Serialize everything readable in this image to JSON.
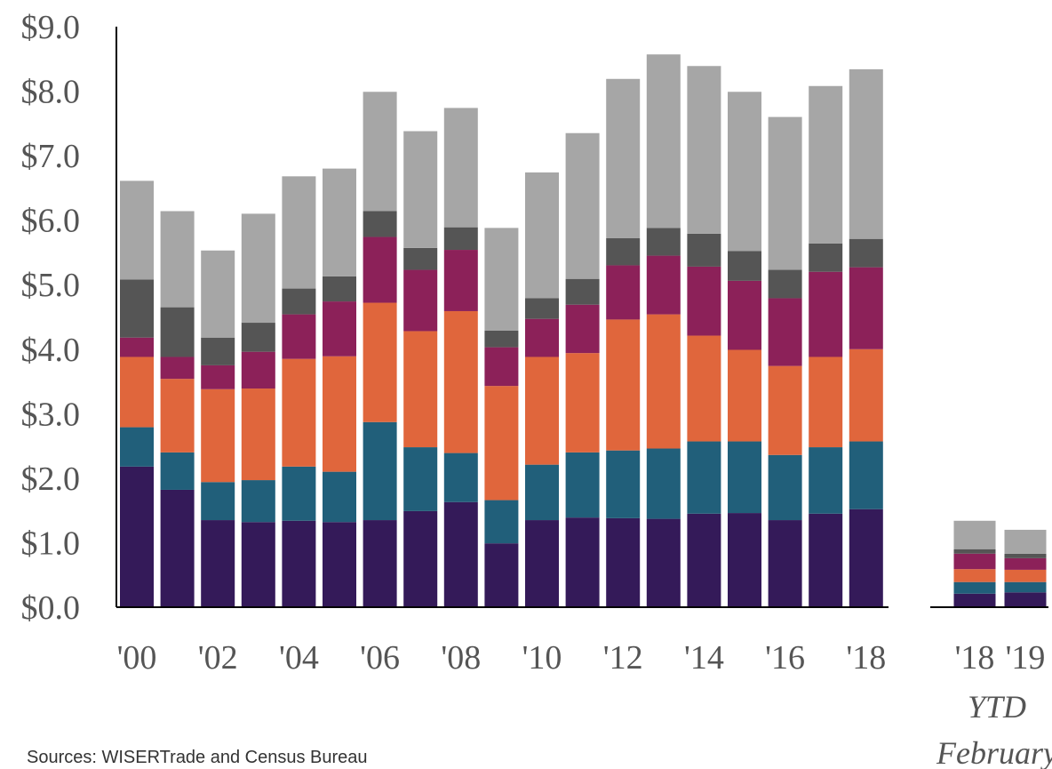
{
  "chart_data": [
    {
      "type": "bar",
      "stacked": true,
      "categories": [
        "'00",
        null,
        "'02",
        null,
        "'04",
        null,
        "'06",
        null,
        "'08",
        null,
        "'10",
        null,
        "'12",
        null,
        "'14",
        null,
        "'16",
        null,
        "'18"
      ],
      "series": [
        {
          "color": "#341a59",
          "values": [
            2.18,
            1.82,
            1.35,
            1.32,
            1.34,
            1.32,
            1.35,
            1.49,
            1.63,
            0.99,
            1.35,
            1.39,
            1.38,
            1.37,
            1.45,
            1.46,
            1.35,
            1.45,
            1.52
          ]
        },
        {
          "color": "#215f7a",
          "values": [
            0.61,
            0.58,
            0.59,
            0.65,
            0.84,
            0.78,
            1.52,
            0.99,
            0.76,
            0.67,
            0.86,
            1.01,
            1.05,
            1.09,
            1.12,
            1.11,
            1.01,
            1.03,
            1.05
          ]
        },
        {
          "color": "#e0663c",
          "values": [
            1.09,
            1.14,
            1.44,
            1.42,
            1.67,
            1.79,
            1.85,
            1.8,
            2.2,
            1.77,
            1.67,
            1.54,
            2.03,
            2.08,
            1.64,
            1.42,
            1.38,
            1.4,
            1.43
          ]
        },
        {
          "color": "#8c2159",
          "values": [
            0.3,
            0.34,
            0.37,
            0.57,
            0.69,
            0.85,
            1.02,
            0.95,
            0.95,
            0.6,
            0.59,
            0.75,
            0.84,
            0.91,
            1.07,
            1.07,
            1.05,
            1.32,
            1.27
          ]
        },
        {
          "color": "#555555",
          "values": [
            0.9,
            0.77,
            0.43,
            0.45,
            0.4,
            0.39,
            0.4,
            0.34,
            0.35,
            0.26,
            0.32,
            0.4,
            0.42,
            0.43,
            0.51,
            0.46,
            0.44,
            0.44,
            0.44
          ]
        },
        {
          "color": "#a6a6a6",
          "values": [
            1.53,
            1.49,
            1.35,
            1.69,
            1.74,
            1.67,
            1.85,
            1.81,
            1.85,
            1.59,
            1.95,
            2.26,
            2.47,
            2.69,
            2.6,
            2.47,
            2.37,
            2.44,
            2.63
          ]
        }
      ],
      "ylim": [
        0,
        9
      ],
      "yticks": [
        {
          "value": 0,
          "label": "$0.0"
        },
        {
          "value": 1,
          "label": "$1.0"
        },
        {
          "value": 2,
          "label": "$2.0"
        },
        {
          "value": 3,
          "label": "$3.0"
        },
        {
          "value": 4,
          "label": "$4.0"
        },
        {
          "value": 5,
          "label": "$5.0"
        },
        {
          "value": 6,
          "label": "$6.0"
        },
        {
          "value": 7,
          "label": "$7.0"
        },
        {
          "value": 8,
          "label": "$8.0"
        },
        {
          "value": 9,
          "label": "$9.0"
        }
      ],
      "source": "Sources: WISERTrade and Census Bureau"
    },
    {
      "type": "bar",
      "stacked": true,
      "categories": [
        "'18",
        "'19"
      ],
      "series": [
        {
          "color": "#341a59",
          "values": [
            0.21,
            0.23
          ]
        },
        {
          "color": "#215f7a",
          "values": [
            0.18,
            0.16
          ]
        },
        {
          "color": "#e0663c",
          "values": [
            0.2,
            0.19
          ]
        },
        {
          "color": "#8c2159",
          "values": [
            0.24,
            0.18
          ]
        },
        {
          "color": "#555555",
          "values": [
            0.07,
            0.07
          ]
        },
        {
          "color": "#a6a6a6",
          "values": [
            0.44,
            0.37
          ]
        }
      ],
      "ylim": [
        0,
        9
      ],
      "annotations": [
        "YTD",
        "February"
      ]
    }
  ]
}
